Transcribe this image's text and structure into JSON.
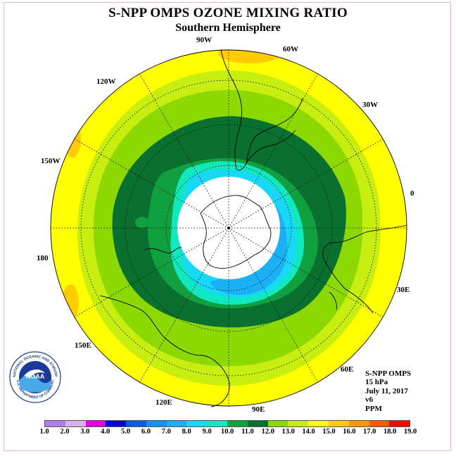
{
  "title": "S-NPP OMPS OZONE MIXING RATIO",
  "subtitle": "Southern Hemisphere",
  "longitude_labels": {
    "lon_90W": "90W",
    "lon_60W": "60W",
    "lon_30W": "30W",
    "lon_0": "0",
    "lon_30E": "30E",
    "lon_60E": "60E",
    "lon_90E": "90E",
    "lon_120E": "120E",
    "lon_150E": "150E",
    "lon_180": "180",
    "lon_150W": "150W",
    "lon_120W": "120W"
  },
  "info": {
    "instrument": "S-NPP OMPS",
    "level": "15 hPa",
    "date": "July 11, 2017",
    "version": "v6",
    "units": "PPM"
  },
  "logo": {
    "text": "NOAA",
    "ring_text": "NATIONAL OCEANIC AND ATMOSPHERIC ADMINISTRATION",
    "ring_text_bottom": "U.S. DEPARTMENT OF COMMERCE"
  },
  "colorbar": {
    "labels": [
      "1.0",
      "2.0",
      "3.0",
      "4.0",
      "5.0",
      "6.0",
      "7.0",
      "8.0",
      "9.0",
      "10.0",
      "11.0",
      "12.0",
      "13.0",
      "14.0",
      "15.0",
      "16.0",
      "17.0",
      "18.0",
      "19.0"
    ],
    "colors": [
      "#b07ee8",
      "#d8b0ee",
      "#e000e0",
      "#0000e0",
      "#0a5ae8",
      "#1a8ff0",
      "#1ab0f6",
      "#18d8f8",
      "#10e8c0",
      "#10a040",
      "#0a7030",
      "#8cd800",
      "#c8ee10",
      "#ffff00",
      "#ffcc00",
      "#ff9900",
      "#ff5a00",
      "#ff0000",
      "#8a5030"
    ]
  },
  "map": {
    "polar_mask_color": "#ffffff",
    "ozone_levels_ppm": [
      "11.0",
      "10.0",
      "9.0",
      "8.0",
      "7.0",
      "12.0",
      "13.0",
      "14.0",
      "15.0"
    ],
    "ozone_level_colors": {
      "14.0": "#ffff00",
      "13.0": "#c8ee10",
      "12.0": "#8cd800",
      "11.0": "#0a7030",
      "10.0": "#10a040",
      "9.0": "#10e8c0",
      "8.0": "#18d8f8",
      "7.0": "#1ab0f6",
      "15.0": "#ffcc00"
    }
  }
}
